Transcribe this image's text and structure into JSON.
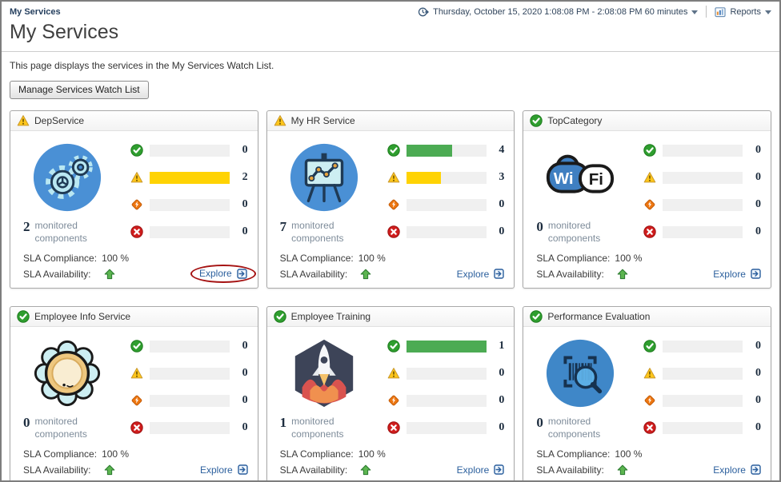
{
  "topbar": {
    "breadcrumb": "My Services",
    "time_icon": "time-range-icon",
    "time_range": "Thursday, October 15, 2020 1:08:08 PM - 2:08:08 PM 60 minutes",
    "reports_icon": "reports-icon",
    "reports_label": "Reports"
  },
  "page": {
    "title": "My Services",
    "description": "This page displays the services in the My Services Watch List.",
    "manage_button_label": "Manage Services Watch List"
  },
  "labels": {
    "monitored_components": "monitored components",
    "sla_compliance": "SLA Compliance:",
    "sla_availability": "SLA Availability:",
    "explore": "Explore"
  },
  "status_colors": {
    "normal": "#4cab53",
    "warning": "#ffd303",
    "critical": "#ee7711",
    "fatal": "#d42020",
    "bar_track": "#f0f0f0",
    "explore_link": "#2b5f9d",
    "annotation_red": "#a51212"
  },
  "services": [
    {
      "name": "DepService",
      "header_state": "warning",
      "icon": "gears-icon",
      "monitored_count": "2",
      "bars": [
        {
          "state": "normal",
          "count": "0",
          "percent": 0
        },
        {
          "state": "warning",
          "count": "2",
          "percent": 100
        },
        {
          "state": "critical",
          "count": "0",
          "percent": 0
        },
        {
          "state": "fatal",
          "count": "0",
          "percent": 0
        }
      ],
      "sla_compliance_value": "100 %",
      "sla_availability_trend": "up",
      "annotation": "explore-link-circled-in-red"
    },
    {
      "name": "My HR Service",
      "header_state": "warning",
      "icon": "chart-easel-icon",
      "monitored_count": "7",
      "bars": [
        {
          "state": "normal",
          "count": "4",
          "percent": 57
        },
        {
          "state": "warning",
          "count": "3",
          "percent": 43
        },
        {
          "state": "critical",
          "count": "0",
          "percent": 0
        },
        {
          "state": "fatal",
          "count": "0",
          "percent": 0
        }
      ],
      "sla_compliance_value": "100 %",
      "sla_availability_trend": "up"
    },
    {
      "name": "TopCategory",
      "header_state": "normal",
      "icon": "wifi-icon",
      "monitored_count": "0",
      "bars": [
        {
          "state": "normal",
          "count": "0",
          "percent": 0
        },
        {
          "state": "warning",
          "count": "0",
          "percent": 0
        },
        {
          "state": "critical",
          "count": "0",
          "percent": 0
        },
        {
          "state": "fatal",
          "count": "0",
          "percent": 0
        }
      ],
      "sla_compliance_value": "100 %",
      "sla_availability_trend": "up"
    },
    {
      "name": "Employee Info Service",
      "header_state": "normal",
      "icon": "flower-icon",
      "monitored_count": "0",
      "bars": [
        {
          "state": "normal",
          "count": "0",
          "percent": 0
        },
        {
          "state": "warning",
          "count": "0",
          "percent": 0
        },
        {
          "state": "critical",
          "count": "0",
          "percent": 0
        },
        {
          "state": "fatal",
          "count": "0",
          "percent": 0
        }
      ],
      "sla_compliance_value": "100 %",
      "sla_availability_trend": "up"
    },
    {
      "name": "Employee Training",
      "header_state": "normal",
      "icon": "rocket-icon",
      "monitored_count": "1",
      "bars": [
        {
          "state": "normal",
          "count": "1",
          "percent": 100
        },
        {
          "state": "warning",
          "count": "0",
          "percent": 0
        },
        {
          "state": "critical",
          "count": "0",
          "percent": 0
        },
        {
          "state": "fatal",
          "count": "0",
          "percent": 0
        }
      ],
      "sla_compliance_value": "100 %",
      "sla_availability_trend": "up"
    },
    {
      "name": "Performance Evaluation",
      "header_state": "normal",
      "icon": "barcode-magnifier-icon",
      "monitored_count": "0",
      "bars": [
        {
          "state": "normal",
          "count": "0",
          "percent": 0
        },
        {
          "state": "warning",
          "count": "0",
          "percent": 0
        },
        {
          "state": "critical",
          "count": "0",
          "percent": 0
        },
        {
          "state": "fatal",
          "count": "0",
          "percent": 0
        }
      ],
      "sla_compliance_value": "100 %",
      "sla_availability_trend": "up"
    }
  ]
}
